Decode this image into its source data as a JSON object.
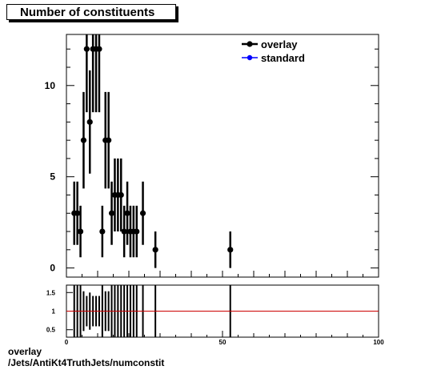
{
  "title": "Number of constituents",
  "footer": {
    "line1": "overlay",
    "line2": "/Jets/AntiKt4TruthJets/numconstit"
  },
  "colors": {
    "overlay": "#000000",
    "standard": "#0000ff",
    "ratio_line": "#cc0000"
  },
  "chart_data": [
    {
      "type": "scatter",
      "xlim": [
        0,
        100
      ],
      "ylim": [
        -0.5,
        12.8
      ],
      "yticks": [
        0,
        5,
        10
      ],
      "xticks": [
        0,
        50,
        100
      ],
      "legend_position": "top-right",
      "legend": [
        "overlay",
        "standard"
      ],
      "series": [
        {
          "name": "overlay",
          "points": [
            {
              "x": 2.5,
              "y": 3
            },
            {
              "x": 3.5,
              "y": 3
            },
            {
              "x": 4.5,
              "y": 2
            },
            {
              "x": 5.5,
              "y": 7
            },
            {
              "x": 6.5,
              "y": 12
            },
            {
              "x": 7.5,
              "y": 8
            },
            {
              "x": 8.5,
              "y": 12
            },
            {
              "x": 9.5,
              "y": 12
            },
            {
              "x": 10.5,
              "y": 12
            },
            {
              "x": 11.5,
              "y": 2
            },
            {
              "x": 12.5,
              "y": 7
            },
            {
              "x": 13.5,
              "y": 7
            },
            {
              "x": 14.5,
              "y": 3
            },
            {
              "x": 15.5,
              "y": 4
            },
            {
              "x": 16.5,
              "y": 4
            },
            {
              "x": 17.5,
              "y": 4
            },
            {
              "x": 18.5,
              "y": 2
            },
            {
              "x": 19.5,
              "y": 3
            },
            {
              "x": 20.5,
              "y": 2
            },
            {
              "x": 21.5,
              "y": 2
            },
            {
              "x": 22.5,
              "y": 2
            },
            {
              "x": 24.5,
              "y": 3
            },
            {
              "x": 28.5,
              "y": 1
            },
            {
              "x": 52.5,
              "y": 1
            }
          ]
        },
        {
          "name": "standard",
          "points": []
        }
      ]
    },
    {
      "type": "scatter",
      "xlim": [
        0,
        100
      ],
      "ylim": [
        0.3,
        1.7
      ],
      "yticks": [
        0.5,
        1,
        1.5
      ],
      "yticklabels": [
        "0.5",
        "1",
        "1.5"
      ],
      "xticks": [
        0,
        50,
        100
      ],
      "reference_line": 1,
      "series": [
        {
          "name": "ratio",
          "points": [
            {
              "x": 2.5,
              "y": 1
            },
            {
              "x": 3.5,
              "y": 1
            },
            {
              "x": 4.5,
              "y": 1
            },
            {
              "x": 5.5,
              "y": 1
            },
            {
              "x": 6.5,
              "y": 1
            },
            {
              "x": 7.5,
              "y": 1
            },
            {
              "x": 8.5,
              "y": 1
            },
            {
              "x": 9.5,
              "y": 1
            },
            {
              "x": 10.5,
              "y": 1
            },
            {
              "x": 11.5,
              "y": 1
            },
            {
              "x": 12.5,
              "y": 1
            },
            {
              "x": 13.5,
              "y": 1
            },
            {
              "x": 14.5,
              "y": 1
            },
            {
              "x": 15.5,
              "y": 1
            },
            {
              "x": 16.5,
              "y": 1
            },
            {
              "x": 17.5,
              "y": 1
            },
            {
              "x": 18.5,
              "y": 1
            },
            {
              "x": 19.5,
              "y": 1
            },
            {
              "x": 20.5,
              "y": 1
            },
            {
              "x": 21.5,
              "y": 1
            },
            {
              "x": 22.5,
              "y": 1
            },
            {
              "x": 24.5,
              "y": 1
            },
            {
              "x": 28.5,
              "y": 1
            },
            {
              "x": 52.5,
              "y": 1
            }
          ]
        }
      ]
    }
  ]
}
